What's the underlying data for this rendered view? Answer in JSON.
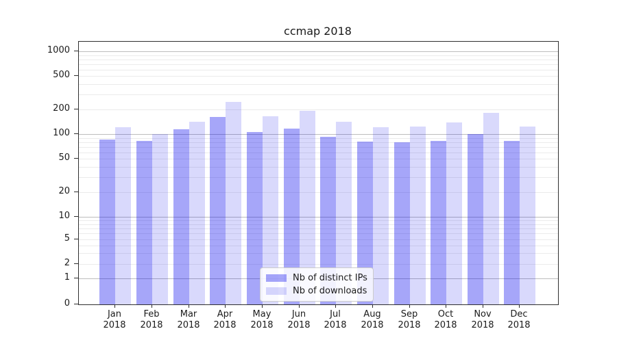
{
  "chart_data": {
    "type": "bar",
    "title": "ccmap 2018",
    "categories": [
      {
        "month": "Jan",
        "year": "2018"
      },
      {
        "month": "Feb",
        "year": "2018"
      },
      {
        "month": "Mar",
        "year": "2018"
      },
      {
        "month": "Apr",
        "year": "2018"
      },
      {
        "month": "May",
        "year": "2018"
      },
      {
        "month": "Jun",
        "year": "2018"
      },
      {
        "month": "Jul",
        "year": "2018"
      },
      {
        "month": "Aug",
        "year": "2018"
      },
      {
        "month": "Sep",
        "year": "2018"
      },
      {
        "month": "Oct",
        "year": "2018"
      },
      {
        "month": "Nov",
        "year": "2018"
      },
      {
        "month": "Dec",
        "year": "2018"
      }
    ],
    "series": [
      {
        "name": "Nb of distinct IPs",
        "color": "#0000ee",
        "fill_opacity": 0.35,
        "values": [
          86,
          82,
          114,
          161,
          106,
          117,
          92,
          81,
          80,
          83,
          101,
          83
        ]
      },
      {
        "name": "Nb of downloads",
        "color": "#0000ee",
        "fill_opacity": 0.15,
        "values": [
          122,
          101,
          141,
          245,
          164,
          190,
          142,
          121,
          124,
          138,
          180,
          123
        ]
      }
    ],
    "y_axis": {
      "scale": "symlog (log above 1, linear 0-1)",
      "tick_labels": [
        0,
        1,
        2,
        5,
        10,
        20,
        50,
        100,
        200,
        500,
        1000
      ],
      "ylim": [
        0,
        1300
      ],
      "grid": true
    },
    "legend": {
      "position": "lower center inside plot",
      "entries": [
        "Nb of distinct IPs",
        "Nb of downloads"
      ]
    }
  }
}
